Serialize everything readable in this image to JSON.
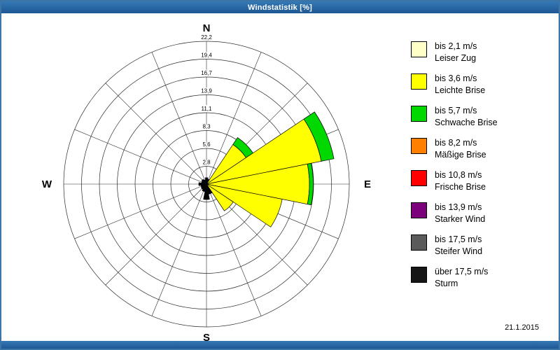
{
  "window": {
    "title": "Windstatistik [%]",
    "date": "21.1.2015"
  },
  "compass": {
    "north": "N",
    "east": "E",
    "south": "S",
    "west": "W"
  },
  "legend": [
    {
      "label": "bis 2,1 m/s",
      "name": "Leiser Zug",
      "color": "#ffffc8"
    },
    {
      "label": "bis 3,6 m/s",
      "name": "Leichte Brise",
      "color": "#ffff00"
    },
    {
      "label": "bis 5,7 m/s",
      "name": "Schwache Brise",
      "color": "#00d800"
    },
    {
      "label": "bis 8,2 m/s",
      "name": "Mäßige Brise",
      "color": "#ff8000"
    },
    {
      "label": "bis 10,8 m/s",
      "name": "Frische Brise",
      "color": "#ff0000"
    },
    {
      "label": "bis 13,9 m/s",
      "name": "Starker Wind",
      "color": "#7c007c"
    },
    {
      "label": "bis 17,5 m/s",
      "name": "Steifer Wind",
      "color": "#5a5a5a"
    },
    {
      "label": "über 17,5 m/s",
      "name": "Sturm",
      "color": "#161616"
    }
  ],
  "chart_data": {
    "type": "windrose",
    "title": "Windstatistik [%]",
    "unit": "%",
    "sector_count": 16,
    "ring_labels": [
      "2,8",
      "5,6",
      "8,3",
      "11,1",
      "13,9",
      "16,7",
      "19,4",
      "22,2"
    ],
    "ring_values": [
      2.8,
      5.6,
      8.3,
      11.1,
      13.9,
      16.7,
      19.4,
      22.2
    ],
    "max_value": 22.2,
    "petals": [
      {
        "direction": "N",
        "bearing": 0,
        "segments": [
          {
            "label": "",
            "color": "#000000",
            "value": 1.0
          }
        ]
      },
      {
        "direction": "NNE",
        "bearing": 22.5,
        "segments": [
          {
            "label": "",
            "color": "#000000",
            "value": 0.8
          }
        ]
      },
      {
        "direction": "NE",
        "bearing": 45,
        "segments": [
          {
            "label": "bis 3,6 m/s",
            "color": "#ffff00",
            "value": 7.4
          },
          {
            "label": "bis 5,7 m/s",
            "color": "#00d800",
            "value": 1.3
          }
        ]
      },
      {
        "direction": "ENE",
        "bearing": 67.5,
        "segments": [
          {
            "label": "bis 3,6 m/s",
            "color": "#ffff00",
            "value": 18.2
          },
          {
            "label": "bis 5,7 m/s",
            "color": "#00d800",
            "value": 2.0
          }
        ]
      },
      {
        "direction": "E",
        "bearing": 90,
        "segments": [
          {
            "label": "bis 3,6 m/s",
            "color": "#ffff00",
            "value": 16.0
          },
          {
            "label": "bis 5,7 m/s",
            "color": "#00d800",
            "value": 0.6
          }
        ]
      },
      {
        "direction": "ESE",
        "bearing": 112.5,
        "segments": [
          {
            "label": "bis 3,6 m/s",
            "color": "#ffff00",
            "value": 12.0
          }
        ]
      },
      {
        "direction": "SE",
        "bearing": 135,
        "segments": [
          {
            "label": "bis 3,6 m/s",
            "color": "#ffff00",
            "value": 5.0
          }
        ]
      },
      {
        "direction": "SSE",
        "bearing": 157.5,
        "segments": [
          {
            "label": "",
            "color": "#000000",
            "value": 1.6
          }
        ]
      },
      {
        "direction": "S",
        "bearing": 180,
        "segments": [
          {
            "label": "",
            "color": "#000000",
            "value": 2.4
          }
        ]
      },
      {
        "direction": "SSW",
        "bearing": 202.5,
        "segments": [
          {
            "label": "",
            "color": "#000000",
            "value": 1.2
          }
        ]
      },
      {
        "direction": "SW",
        "bearing": 225,
        "segments": [
          {
            "label": "",
            "color": "#000000",
            "value": 1.0
          }
        ]
      },
      {
        "direction": "WSW",
        "bearing": 247.5,
        "segments": [
          {
            "label": "",
            "color": "#000000",
            "value": 0.9
          }
        ]
      },
      {
        "direction": "W",
        "bearing": 270,
        "segments": [
          {
            "label": "",
            "color": "#000000",
            "value": 1.2
          }
        ]
      },
      {
        "direction": "WNW",
        "bearing": 292.5,
        "segments": [
          {
            "label": "",
            "color": "#000000",
            "value": 0.8
          }
        ]
      },
      {
        "direction": "NW",
        "bearing": 315,
        "segments": [
          {
            "label": "",
            "color": "#000000",
            "value": 0.9
          }
        ]
      },
      {
        "direction": "NNW",
        "bearing": 337.5,
        "segments": [
          {
            "label": "",
            "color": "#000000",
            "value": 0.7
          }
        ]
      }
    ]
  }
}
